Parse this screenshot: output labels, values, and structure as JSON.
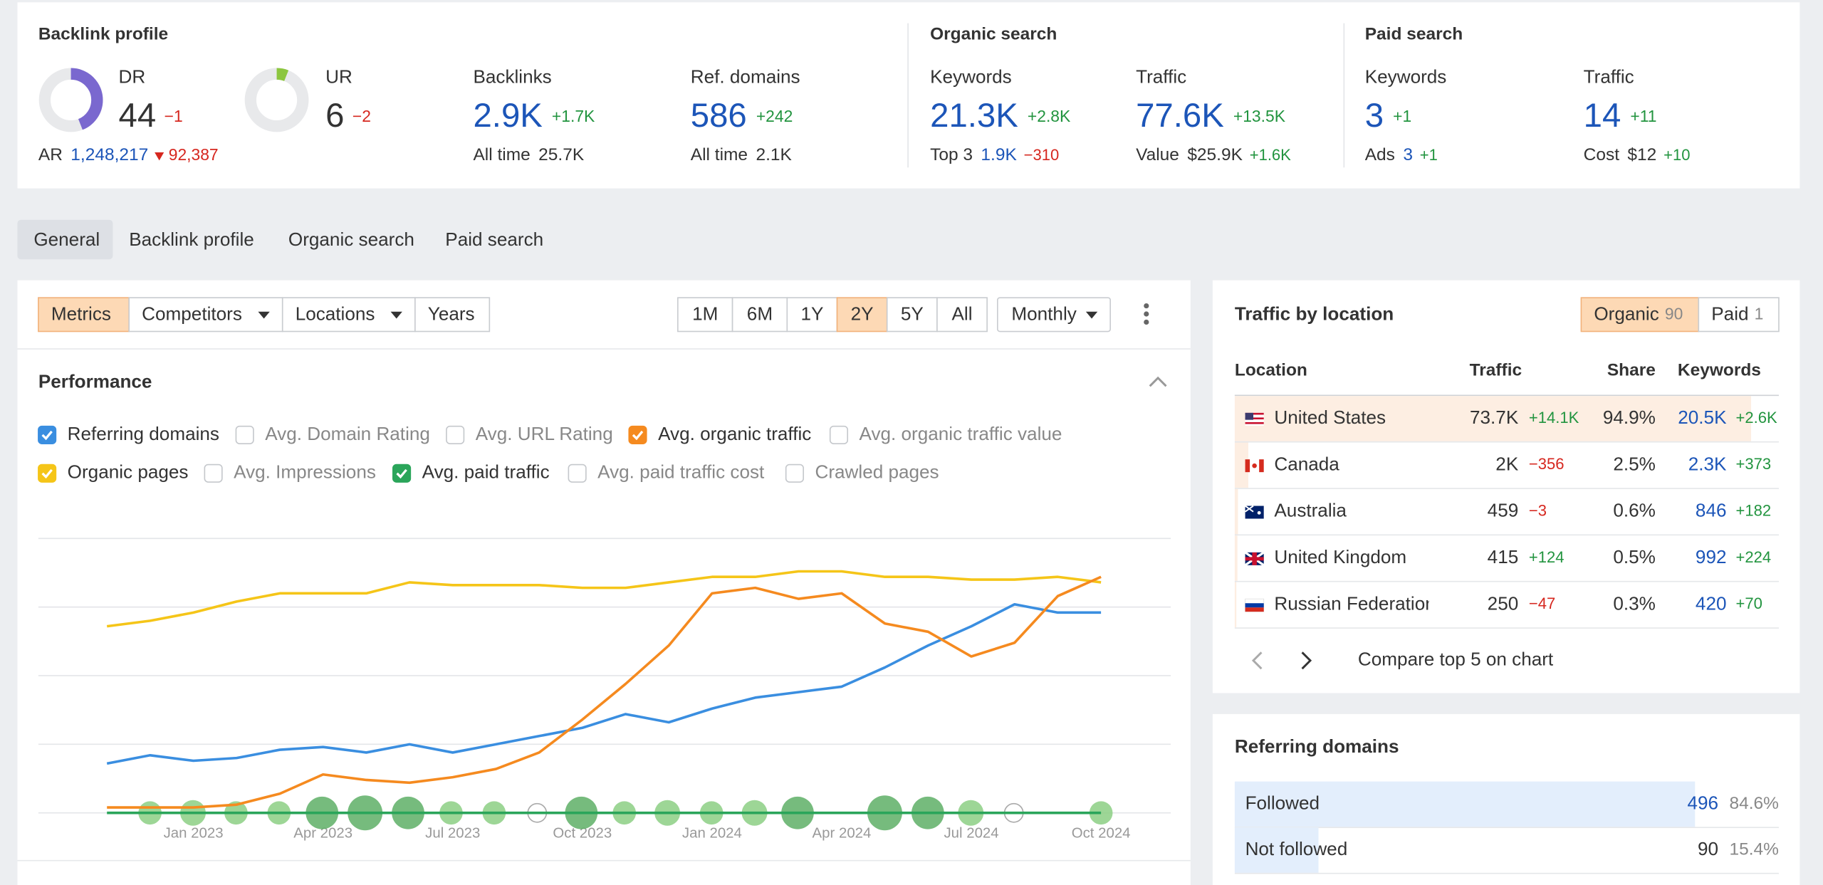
{
  "backlink_profile": {
    "title": "Backlink profile",
    "dr": {
      "label": "DR",
      "value": 44,
      "range": [
        0,
        100
      ],
      "change": "−1",
      "color": "#7a68cf"
    },
    "ur": {
      "label": "UR",
      "value": 6,
      "range": [
        0,
        100
      ],
      "change": "−2",
      "color": "#8cc63f"
    },
    "ar": {
      "label": "AR",
      "value": "1,248,217",
      "change": "92,387"
    },
    "backlinks": {
      "label": "Backlinks",
      "value": "2.9K",
      "change": "+1.7K",
      "sub_label": "All time",
      "sub_value": "25.7K"
    },
    "ref_domains": {
      "label": "Ref. domains",
      "value": "586",
      "change": "+242",
      "sub_label": "All time",
      "sub_value": "2.1K"
    }
  },
  "organic_search": {
    "title": "Organic search",
    "keywords": {
      "label": "Keywords",
      "value": "21.3K",
      "change": "+2.8K",
      "sub_label": "Top 3",
      "sub_value": "1.9K",
      "sub_change": "−310"
    },
    "traffic": {
      "label": "Traffic",
      "value": "77.6K",
      "change": "+13.5K",
      "sub_label": "Value",
      "sub_value": "$25.9K",
      "sub_change": "+1.6K"
    }
  },
  "paid_search": {
    "title": "Paid search",
    "keywords": {
      "label": "Keywords",
      "value": "3",
      "change": "+1",
      "sub_label": "Ads",
      "sub_value": "3",
      "sub_change": "+1"
    },
    "traffic": {
      "label": "Traffic",
      "value": "14",
      "change": "+11",
      "sub_label": "Cost",
      "sub_value": "$12",
      "sub_change": "+10"
    }
  },
  "tabs": [
    "General",
    "Backlink profile",
    "Organic search",
    "Paid search"
  ],
  "active_tab": 0,
  "toolbar": {
    "views": [
      "Metrics",
      "Competitors",
      "Locations",
      "Years"
    ],
    "active_view": 0,
    "ranges": [
      "1M",
      "6M",
      "1Y",
      "2Y",
      "5Y",
      "All"
    ],
    "active_range": 3,
    "interval": "Monthly"
  },
  "performance": {
    "title": "Performance",
    "unchecked": [
      "Avg. Domain Rating",
      "Avg. URL Rating",
      "Avg. organic traffic value",
      "Avg. Impressions",
      "Avg. paid traffic cost",
      "Crawled pages"
    ]
  },
  "chart_data": {
    "type": "line",
    "categories": [
      null,
      null,
      "Jan 2023",
      null,
      null,
      "Apr 2023",
      null,
      null,
      "Jul 2023",
      null,
      null,
      "Oct 2023",
      null,
      null,
      "Jan 2024",
      null,
      null,
      "Apr 2024",
      null,
      null,
      "Jul 2024",
      null,
      null,
      "Oct 2024"
    ],
    "ylim": [
      0,
      100
    ],
    "yticks": [
      0,
      25,
      50,
      75,
      100
    ],
    "grid": true,
    "series": [
      {
        "name": "Referring domains",
        "color": "#3a8ee0",
        "values": [
          18,
          21,
          19,
          20,
          23,
          24,
          22,
          25,
          22,
          25,
          28,
          31,
          36,
          33,
          38,
          42,
          44,
          46,
          53,
          61,
          68,
          76,
          73,
          73
        ]
      },
      {
        "name": "Avg. organic traffic",
        "color": "#f58a1f",
        "values": [
          2,
          2,
          2,
          3,
          7,
          14,
          12,
          11,
          13,
          16,
          22,
          34,
          47,
          61,
          80,
          82,
          78,
          80,
          69,
          66,
          57,
          62,
          79,
          86
        ]
      },
      {
        "name": "Organic pages",
        "color": "#f5c518",
        "values": [
          68,
          70,
          73,
          77,
          80,
          80,
          80,
          84,
          83,
          83,
          83,
          82,
          82,
          84,
          86,
          86,
          88,
          88,
          86,
          86,
          85,
          85,
          86,
          84
        ]
      },
      {
        "name": "Avg. paid traffic",
        "color": "#2aa55a",
        "values": [
          0,
          0,
          0,
          0,
          0,
          0,
          0,
          0,
          0,
          0,
          0,
          0,
          0,
          0,
          0,
          0,
          0,
          0,
          0,
          0,
          0,
          0,
          0,
          0
        ]
      }
    ]
  },
  "traffic_by_location": {
    "title": "Traffic by location",
    "toggle": [
      {
        "label": "Organic",
        "count": "90"
      },
      {
        "label": "Paid",
        "count": "1"
      }
    ],
    "active_toggle": 0,
    "columns": [
      "Location",
      "Traffic",
      "Share",
      "Keywords"
    ],
    "rows": [
      {
        "location": "United States",
        "traffic": "73.7K",
        "traffic_change": "+14.1K",
        "share": {
          "value": 94.9,
          "label": "94.9%"
        },
        "keywords": "20.5K",
        "keywords_change": "+2.6K"
      },
      {
        "location": "Canada",
        "traffic": "2K",
        "traffic_change": "−356",
        "share": {
          "value": 2.5,
          "label": "2.5%"
        },
        "keywords": "2.3K",
        "keywords_change": "+373"
      },
      {
        "location": "Australia",
        "traffic": "459",
        "traffic_change": "−3",
        "share": {
          "value": 0.6,
          "label": "0.6%"
        },
        "keywords": "846",
        "keywords_change": "+182"
      },
      {
        "location": "United Kingdom",
        "traffic": "415",
        "traffic_change": "+124",
        "share": {
          "value": 0.5,
          "label": "0.5%"
        },
        "keywords": "992",
        "keywords_change": "+224"
      },
      {
        "location": "Russian Federation",
        "traffic": "250",
        "traffic_change": "−47",
        "share": {
          "value": 0.3,
          "label": "0.3%"
        },
        "keywords": "420",
        "keywords_change": "+70"
      }
    ],
    "footer": "Compare top 5 on chart"
  },
  "referring_domains": {
    "title": "Referring domains",
    "rows": [
      {
        "label": "Followed",
        "value": 496,
        "share": {
          "value": 84.6,
          "label": "84.6%"
        }
      },
      {
        "label": "Not followed",
        "value": 90,
        "share": {
          "value": 15.4,
          "label": "15.4%"
        }
      }
    ]
  }
}
